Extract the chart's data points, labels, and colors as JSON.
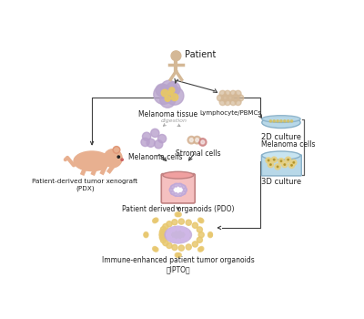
{
  "bg_color": "#ffffff",
  "elements": {
    "patient_label": "Patient",
    "melanoma_tissue_label": "Melanoma tissue",
    "lymphocyte_label": "Lymphocyte/PBMCs",
    "digestion_label": "digestion",
    "melanoma_cells_label": "Melanoma cells",
    "stromal_cells_label": "Stromal cells",
    "pdo_label": "Patient derived organoids (PDO)",
    "pdx_label": "Patient-derived tumor xenograft\n(PDX)",
    "ipto_label": "Immune-enhanced patient tumor organoids\n（IPTO）",
    "culture_2d_label": "2D culture",
    "culture_3d_label": "3D culture",
    "melanoma_cells_side_label": "Melanoma cells"
  },
  "colors": {
    "melanoma_tissue_purple": "#b8a4cc",
    "melanoma_tissue_yellow": "#e8c865",
    "lymphocyte_tan": "#d4b896",
    "melanoma_cells_purple": "#b8a0cc",
    "stromal_cells_tan": "#d4b090",
    "stromal_cells_pink": "#cc8080",
    "container_pink": "#f0a0a0",
    "container_fill": "#f5c0c0",
    "organoid_purple": "#c0a8d8",
    "organoid_yellow": "#e8c870",
    "mouse_color": "#e8b090",
    "dish_blue": "#b8d8e8",
    "dish_yellow": "#e8d080",
    "arrow_color": "#404040",
    "text_color": "#202020",
    "digestion_color": "#a0a0a0",
    "bracket_color": "#606060"
  }
}
